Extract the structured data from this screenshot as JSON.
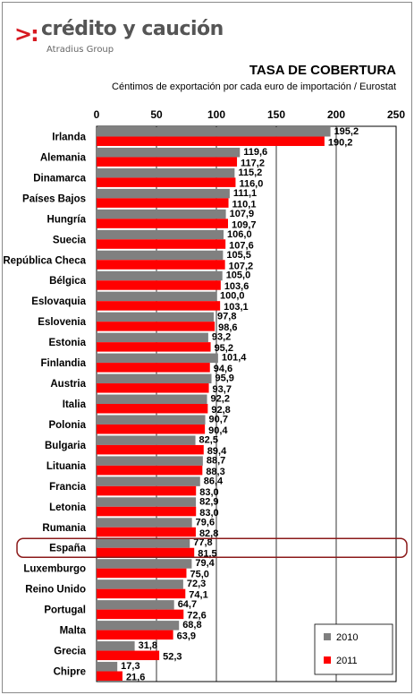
{
  "brand": {
    "mark": ">:",
    "name": "crédito y caución",
    "tagline": "Atradius Group"
  },
  "colors": {
    "series_2010": "#808080",
    "series_2011": "#ff0000",
    "highlight_border": "#8b1a1a",
    "logo_red": "#d71920"
  },
  "chart_data": {
    "type": "bar",
    "orientation": "horizontal",
    "title": "TASA DE COBERTURA",
    "subtitle": "Céntimos de exportación por cada euro de importación / Eurostat",
    "xlim": [
      0,
      250
    ],
    "xticks": [
      "0",
      "50",
      "100",
      "150",
      "200",
      "250"
    ],
    "grid": true,
    "legend_position": "bottom-right",
    "highlighted_category": "España",
    "categories": [
      "Irlanda",
      "Alemania",
      "Dinamarca",
      "Países Bajos",
      "Hungría",
      "Suecia",
      "República Checa",
      "Bélgica",
      "Eslovaquia",
      "Eslovenia",
      "Estonia",
      "Finlandia",
      "Austria",
      "Italia",
      "Polonia",
      "Bulgaria",
      "Lituania",
      "Francia",
      "Letonia",
      "Rumania",
      "España",
      "Luxemburgo",
      "Reino Unido",
      "Portugal",
      "Malta",
      "Grecia",
      "Chipre"
    ],
    "series": [
      {
        "name": "2010",
        "values": [
          195.2,
          119.6,
          115.2,
          111.1,
          107.9,
          106.0,
          105.5,
          105.0,
          100.0,
          97.8,
          93.2,
          101.4,
          95.9,
          92.2,
          90.7,
          82.5,
          88.7,
          86.4,
          82.9,
          79.6,
          77.8,
          79.4,
          72.3,
          64.7,
          68.8,
          31.8,
          17.3
        ],
        "labels": [
          "195,2",
          "119,6",
          "115,2",
          "111,1",
          "107,9",
          "106,0",
          "105,5",
          "105,0",
          "100,0",
          "97,8",
          "93,2",
          "101,4",
          "95,9",
          "92,2",
          "90,7",
          "82,5",
          "88,7",
          "86,4",
          "82,9",
          "79,6",
          "77,8",
          "79,4",
          "72,3",
          "64,7",
          "68,8",
          "31,8",
          "17,3"
        ]
      },
      {
        "name": "2011",
        "values": [
          190.2,
          117.2,
          116.0,
          110.1,
          109.7,
          107.6,
          107.2,
          103.6,
          103.1,
          98.6,
          95.2,
          94.6,
          93.7,
          92.8,
          90.4,
          89.4,
          88.3,
          83.0,
          83.0,
          82.8,
          81.5,
          75.0,
          74.1,
          72.6,
          63.9,
          52.3,
          21.6
        ],
        "labels": [
          "190,2",
          "117,2",
          "116,0",
          "110,1",
          "109,7",
          "107,6",
          "107,2",
          "103,6",
          "103,1",
          "98,6",
          "95,2",
          "94,6",
          "93,7",
          "92,8",
          "90,4",
          "89,4",
          "88,3",
          "83,0",
          "83,0",
          "82,8",
          "81,5",
          "75,0",
          "74,1",
          "72,6",
          "63,9",
          "52,3",
          "21,6"
        ]
      }
    ]
  }
}
